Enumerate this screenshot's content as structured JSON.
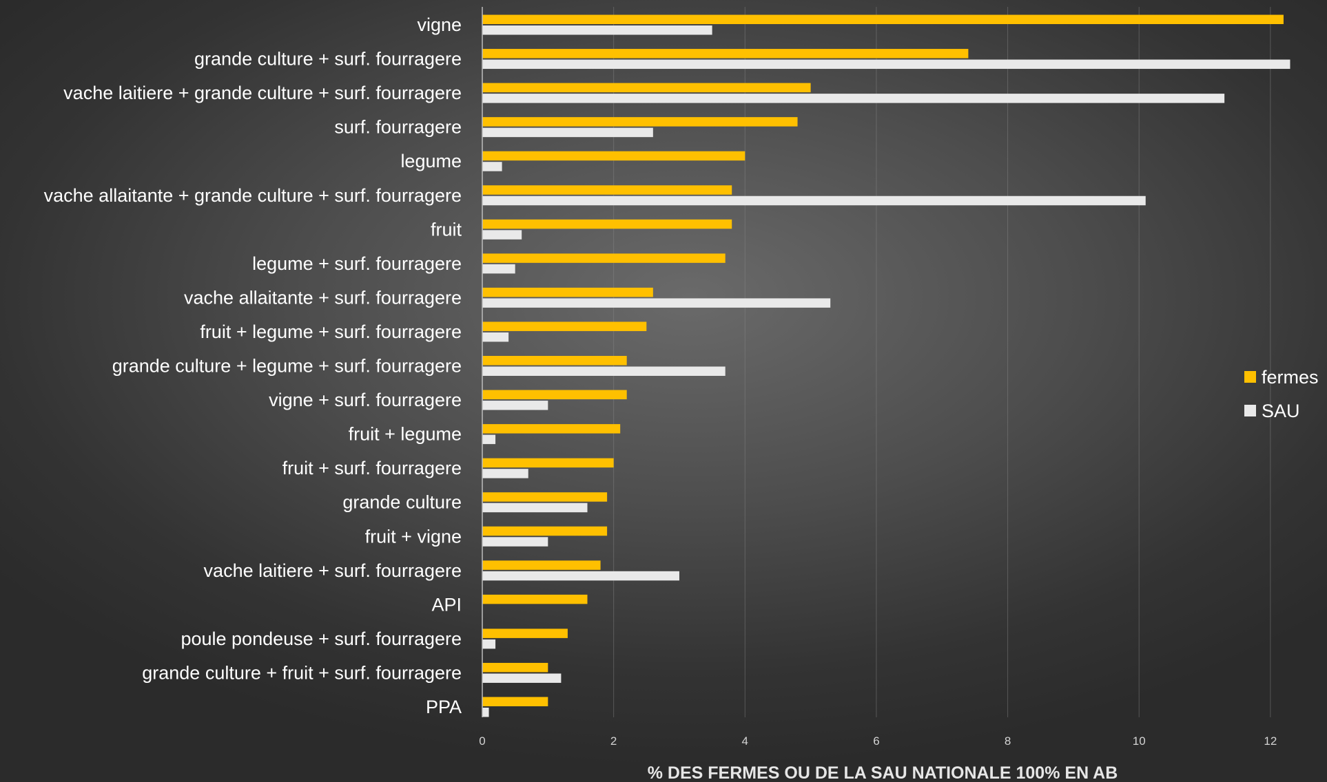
{
  "chart_data": {
    "type": "bar",
    "orientation": "horizontal",
    "categories": [
      "vigne",
      "grande culture + surf. fourragere",
      "vache laitiere + grande culture + surf. fourragere",
      "surf. fourragere",
      "legume",
      "vache allaitante + grande culture + surf. fourragere",
      "fruit",
      "legume + surf. fourragere",
      "vache allaitante + surf. fourragere",
      "fruit + legume + surf. fourragere",
      "grande culture + legume + surf. fourragere",
      "vigne + surf. fourragere",
      "fruit + legume",
      "fruit + surf. fourragere",
      "grande culture",
      "fruit + vigne",
      "vache laitiere + surf. fourragere",
      "API",
      "poule pondeuse + surf. fourragere",
      "grande culture + fruit + surf. fourragere",
      "PPA"
    ],
    "series": [
      {
        "name": "fermes",
        "color": "#FFC000",
        "values": [
          12.2,
          7.4,
          5.0,
          4.8,
          4.0,
          3.8,
          3.8,
          3.7,
          2.6,
          2.5,
          2.2,
          2.2,
          2.1,
          2.0,
          1.9,
          1.9,
          1.8,
          1.6,
          1.3,
          1.0,
          1.0
        ]
      },
      {
        "name": "SAU",
        "color": "#E9E9E9",
        "values": [
          3.5,
          12.3,
          11.3,
          2.6,
          0.3,
          10.1,
          0.6,
          0.5,
          5.3,
          0.4,
          3.7,
          1.0,
          0.2,
          0.7,
          1.6,
          1.0,
          3.0,
          0.0,
          0.2,
          1.2,
          0.1
        ]
      }
    ],
    "xlabel": "% DES FERMES OU DE LA SAU NATIONALE 100% EN AB",
    "ylabel": "",
    "title": "",
    "xlim": [
      0,
      12.4
    ],
    "xticks": [
      0,
      2,
      4,
      6,
      8,
      10,
      12
    ],
    "xtick_labels": [
      "0",
      "2",
      "4",
      "6",
      "8",
      "10",
      "12"
    ],
    "grid": true,
    "legend_position": "right"
  }
}
